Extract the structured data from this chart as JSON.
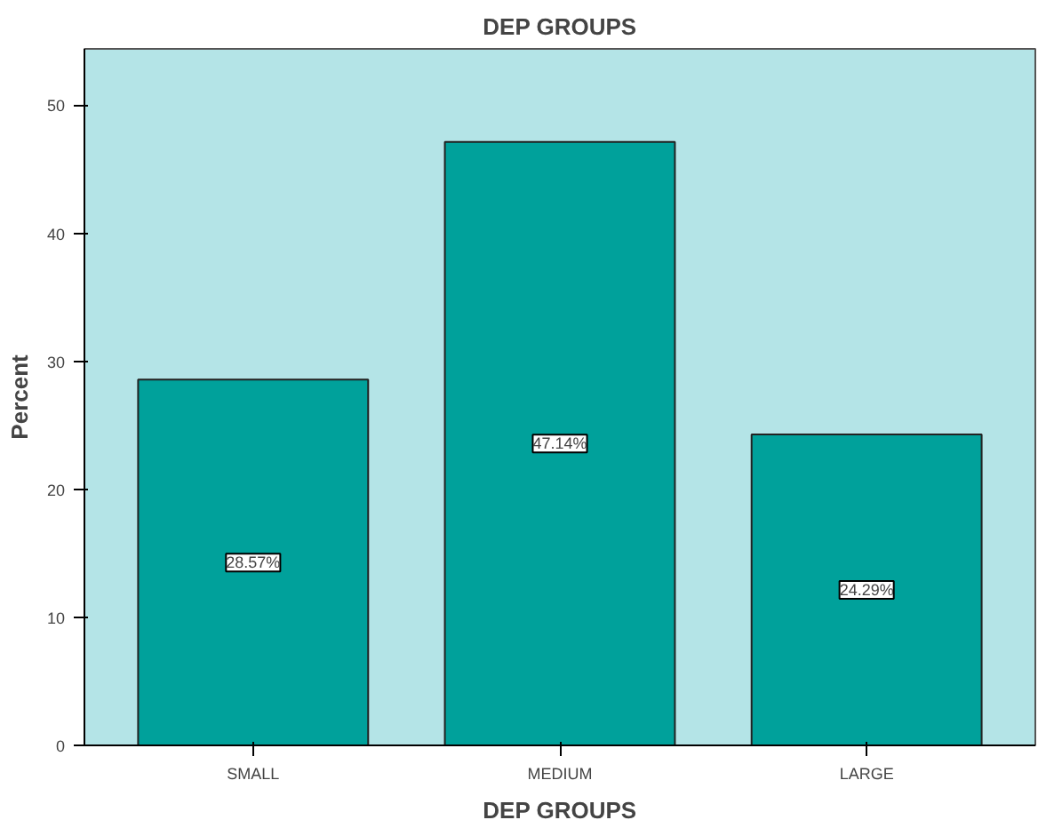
{
  "chart_data": {
    "type": "bar",
    "title": "DEP GROUPS",
    "xlabel": "DEP GROUPS",
    "ylabel": "Percent",
    "categories": [
      "SMALL",
      "MEDIUM",
      "LARGE"
    ],
    "values": [
      28.57,
      47.14,
      24.29
    ],
    "value_labels": [
      "28.57%",
      "47.14%",
      "24.29%"
    ],
    "color": "#00a19b",
    "ylim": [
      0,
      54.4
    ],
    "yticks": [
      0,
      10,
      20,
      30,
      40,
      50
    ],
    "grid": false
  }
}
